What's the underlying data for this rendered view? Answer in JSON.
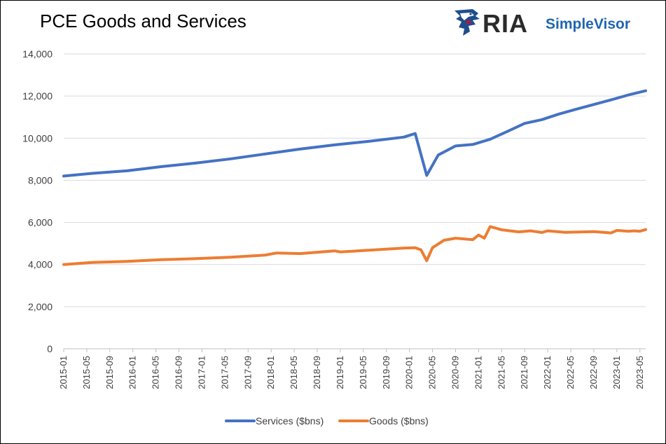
{
  "chart_data": {
    "type": "line",
    "title": "PCE Goods and Services",
    "xlabel": "",
    "ylabel": "",
    "ylim": [
      0,
      14000
    ],
    "yticks": [
      "0",
      "2,000",
      "4,000",
      "6,000",
      "8,000",
      "10,000",
      "12,000",
      "14,000"
    ],
    "x_start": "2015-01",
    "x_end": "2023-06",
    "xticks": [
      "2015-01",
      "2015-05",
      "2015-09",
      "2016-01",
      "2016-05",
      "2016-09",
      "2017-01",
      "2017-05",
      "2017-09",
      "2018-01",
      "2018-05",
      "2018-09",
      "2019-01",
      "2019-05",
      "2019-09",
      "2020-01",
      "2020-05",
      "2020-09",
      "2021-01",
      "2021-05",
      "2021-09",
      "2022-01",
      "2022-05",
      "2022-09",
      "2023-01",
      "2023-05"
    ],
    "grid": true,
    "legend": "bottom",
    "series": [
      {
        "name": "Services ($bns)",
        "color": "#4472C4",
        "points": [
          [
            "2015-01",
            8200
          ],
          [
            "2015-06",
            8330
          ],
          [
            "2015-12",
            8450
          ],
          [
            "2016-06",
            8650
          ],
          [
            "2016-12",
            8820
          ],
          [
            "2017-06",
            9020
          ],
          [
            "2017-12",
            9250
          ],
          [
            "2018-06",
            9480
          ],
          [
            "2018-12",
            9680
          ],
          [
            "2019-06",
            9850
          ],
          [
            "2019-12",
            10050
          ],
          [
            "2020-02",
            10220
          ],
          [
            "2020-04",
            8230
          ],
          [
            "2020-06",
            9200
          ],
          [
            "2020-09",
            9630
          ],
          [
            "2020-12",
            9700
          ],
          [
            "2021-03",
            9950
          ],
          [
            "2021-06",
            10320
          ],
          [
            "2021-09",
            10700
          ],
          [
            "2021-12",
            10880
          ],
          [
            "2022-03",
            11150
          ],
          [
            "2022-06",
            11380
          ],
          [
            "2022-09",
            11600
          ],
          [
            "2022-12",
            11820
          ],
          [
            "2023-03",
            12050
          ],
          [
            "2023-06",
            12250
          ]
        ]
      },
      {
        "name": "Goods ($bns)",
        "color": "#ED7D31",
        "points": [
          [
            "2015-01",
            4000
          ],
          [
            "2015-06",
            4100
          ],
          [
            "2015-12",
            4150
          ],
          [
            "2016-06",
            4230
          ],
          [
            "2016-12",
            4280
          ],
          [
            "2017-06",
            4350
          ],
          [
            "2017-12",
            4450
          ],
          [
            "2018-02",
            4550
          ],
          [
            "2018-06",
            4520
          ],
          [
            "2018-12",
            4650
          ],
          [
            "2019-01",
            4600
          ],
          [
            "2019-06",
            4680
          ],
          [
            "2019-12",
            4780
          ],
          [
            "2020-02",
            4800
          ],
          [
            "2020-03",
            4700
          ],
          [
            "2020-04",
            4180
          ],
          [
            "2020-05",
            4800
          ],
          [
            "2020-07",
            5150
          ],
          [
            "2020-09",
            5250
          ],
          [
            "2020-12",
            5180
          ],
          [
            "2021-01",
            5400
          ],
          [
            "2021-02",
            5250
          ],
          [
            "2021-03",
            5800
          ],
          [
            "2021-05",
            5650
          ],
          [
            "2021-08",
            5550
          ],
          [
            "2021-10",
            5600
          ],
          [
            "2021-12",
            5520
          ],
          [
            "2022-01",
            5600
          ],
          [
            "2022-04",
            5530
          ],
          [
            "2022-09",
            5560
          ],
          [
            "2022-12",
            5500
          ],
          [
            "2023-01",
            5620
          ],
          [
            "2023-03",
            5580
          ],
          [
            "2023-04",
            5600
          ],
          [
            "2023-05",
            5580
          ],
          [
            "2023-06",
            5660
          ]
        ]
      }
    ]
  },
  "logo": {
    "brand": "RIA",
    "product": "SimpleVisor",
    "icon": "eagle-icon",
    "brand_color": "#2b2b2b",
    "product_color": "#1f66b0"
  }
}
